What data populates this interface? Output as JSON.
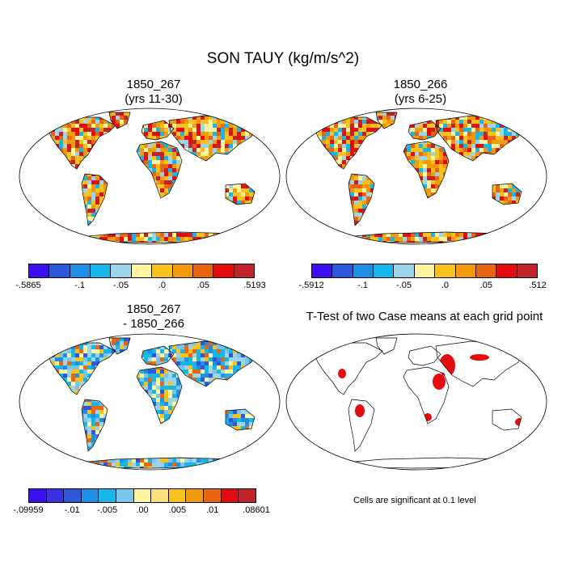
{
  "title": "SON TAUY (kg/m/s^2)",
  "panels": [
    {
      "line1": "1850_267",
      "line2": "(yrs 11-30)"
    },
    {
      "line1": "1850_266",
      "line2": "(yrs 6-25)"
    },
    {
      "line1": "1850_267",
      "line2": "- 1850_266"
    },
    {
      "line1": "T-Test of two Case means at each grid point",
      "line2": ""
    }
  ],
  "colorbars": [
    {
      "colors": [
        "#3b0ff0",
        "#2d58d9",
        "#1f8fe6",
        "#15b7ea",
        "#9ad5ec",
        "#fff5a1",
        "#f9c21a",
        "#f29a0e",
        "#ea6512",
        "#e30d10",
        "#c0242a"
      ],
      "labels": [
        "-.5865",
        "-.1",
        "-.05",
        ".0",
        ".05",
        ".5193"
      ]
    },
    {
      "colors": [
        "#3b0ff0",
        "#2d58d9",
        "#1f8fe6",
        "#15b7ea",
        "#9ad5ec",
        "#fff5a1",
        "#f9c21a",
        "#f29a0e",
        "#ea6512",
        "#e30d10",
        "#c0242a"
      ],
      "labels": [
        "-.5912",
        "-.1",
        "-.05",
        ".0",
        ".05",
        ".512"
      ]
    },
    {
      "colors": [
        "#3b0ff0",
        "#3a32e0",
        "#2d58d9",
        "#1f8fe6",
        "#15b7ea",
        "#7ac4ec",
        "#fff5a1",
        "#fbe07a",
        "#f9c21a",
        "#f29a0e",
        "#ea6512",
        "#e30d10",
        "#c0242a"
      ],
      "labels": [
        "-.09959",
        "-.01",
        "-.005",
        ".00",
        ".005",
        ".01",
        ".08601"
      ]
    }
  ],
  "significance_note": "Cells are significant at 0.1 level"
}
